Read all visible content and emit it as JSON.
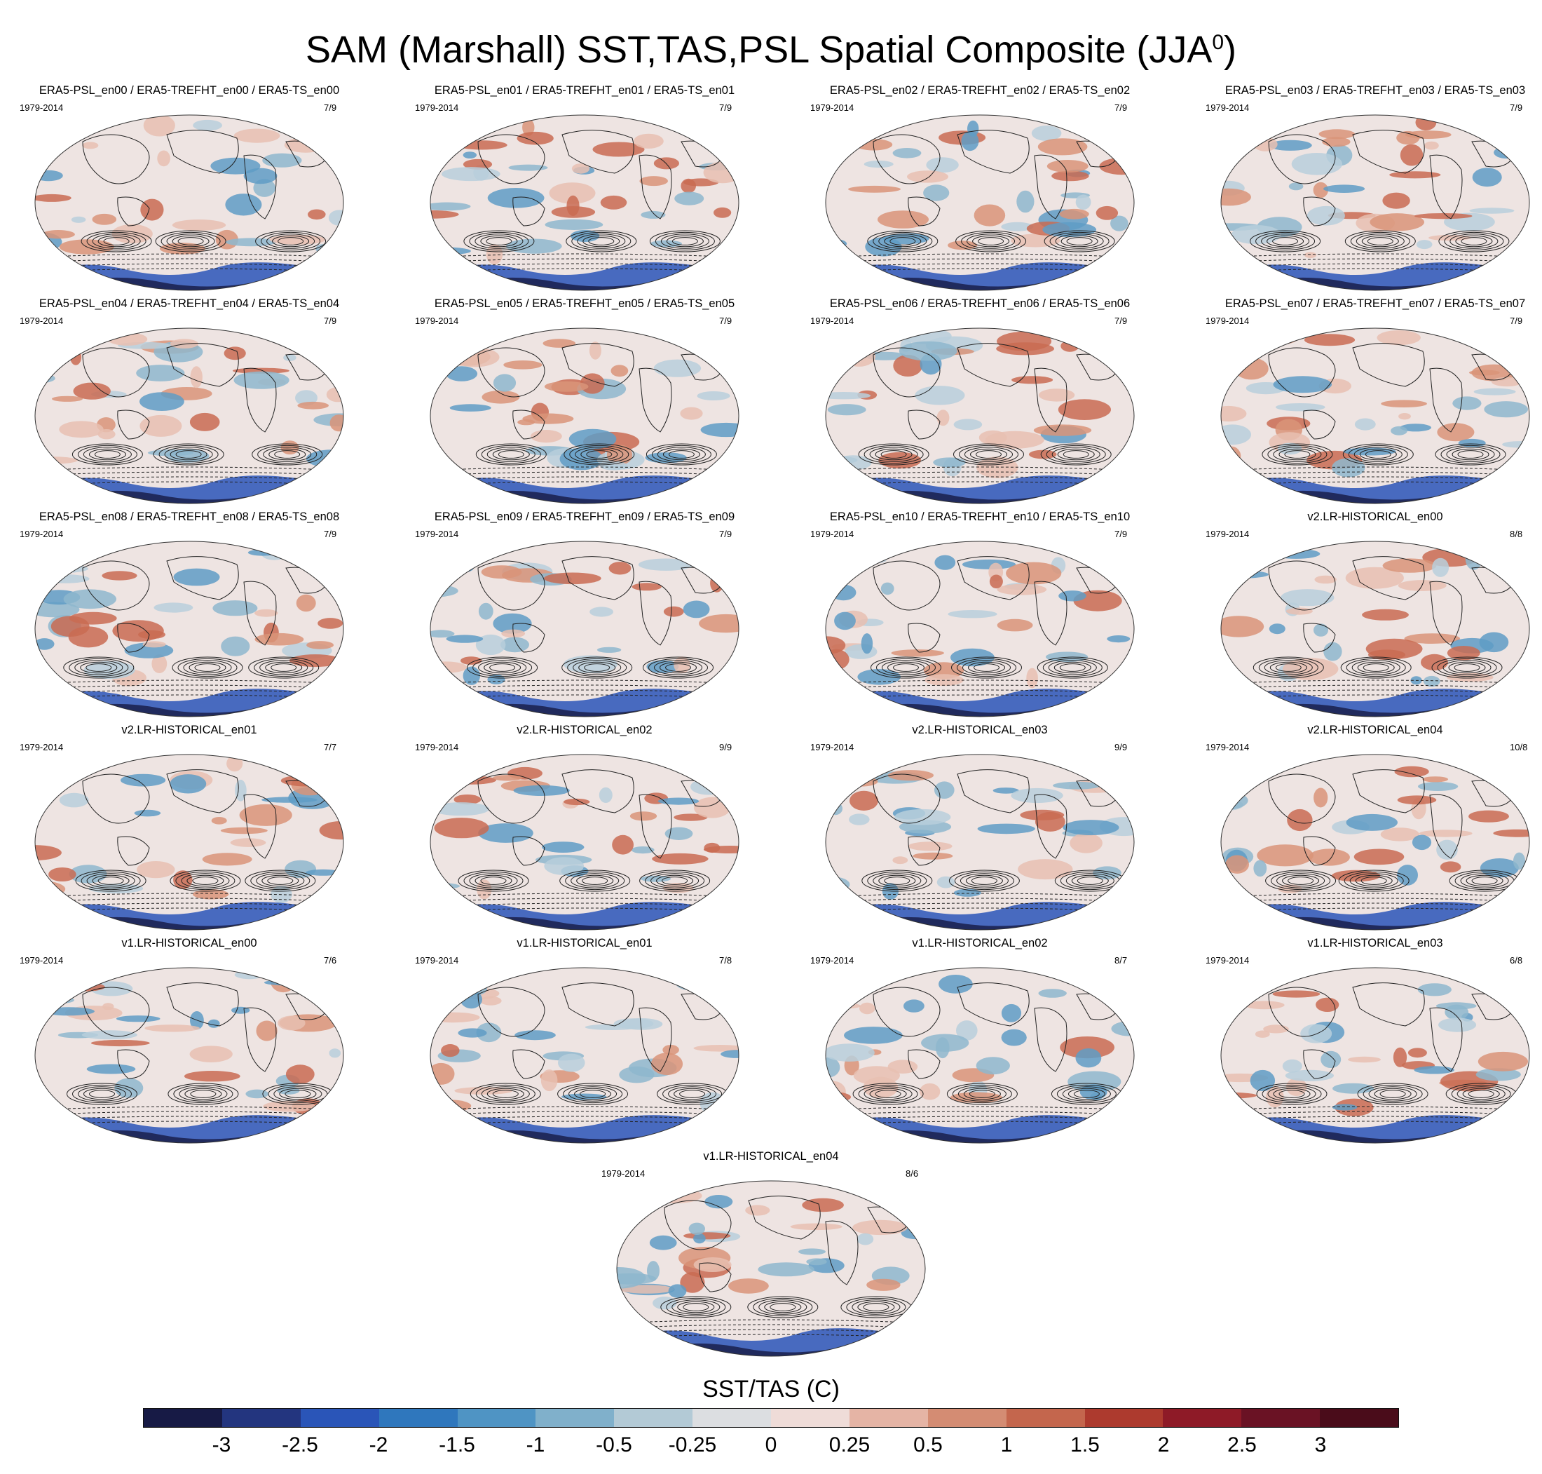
{
  "title": {
    "main": "SAM (Marshall) SST,TAS,PSL Spatial Composite (JJA",
    "sup": "0",
    "close": ")"
  },
  "panels": [
    {
      "title": "ERA5-PSL_en00 / ERA5-TREFHT_en00 / ERA5-TS_en00",
      "period": "1979-2014",
      "ratio": "7/9"
    },
    {
      "title": "ERA5-PSL_en01 / ERA5-TREFHT_en01 / ERA5-TS_en01",
      "period": "1979-2014",
      "ratio": "7/9"
    },
    {
      "title": "ERA5-PSL_en02 / ERA5-TREFHT_en02 / ERA5-TS_en02",
      "period": "1979-2014",
      "ratio": "7/9"
    },
    {
      "title": "ERA5-PSL_en03 / ERA5-TREFHT_en03 / ERA5-TS_en03",
      "period": "1979-2014",
      "ratio": "7/9"
    },
    {
      "title": "ERA5-PSL_en04 / ERA5-TREFHT_en04 / ERA5-TS_en04",
      "period": "1979-2014",
      "ratio": "7/9"
    },
    {
      "title": "ERA5-PSL_en05 / ERA5-TREFHT_en05 / ERA5-TS_en05",
      "period": "1979-2014",
      "ratio": "7/9"
    },
    {
      "title": "ERA5-PSL_en06 / ERA5-TREFHT_en06 / ERA5-TS_en06",
      "period": "1979-2014",
      "ratio": "7/9"
    },
    {
      "title": "ERA5-PSL_en07 / ERA5-TREFHT_en07 / ERA5-TS_en07",
      "period": "1979-2014",
      "ratio": "7/9"
    },
    {
      "title": "ERA5-PSL_en08 / ERA5-TREFHT_en08 / ERA5-TS_en08",
      "period": "1979-2014",
      "ratio": "7/9"
    },
    {
      "title": "ERA5-PSL_en09 / ERA5-TREFHT_en09 / ERA5-TS_en09",
      "period": "1979-2014",
      "ratio": "7/9"
    },
    {
      "title": "ERA5-PSL_en10 / ERA5-TREFHT_en10 / ERA5-TS_en10",
      "period": "1979-2014",
      "ratio": "7/9"
    },
    {
      "title": "v2.LR-HISTORICAL_en00",
      "period": "1979-2014",
      "ratio": "8/8"
    },
    {
      "title": "v2.LR-HISTORICAL_en01",
      "period": "1979-2014",
      "ratio": "7/7"
    },
    {
      "title": "v2.LR-HISTORICAL_en02",
      "period": "1979-2014",
      "ratio": "9/9"
    },
    {
      "title": "v2.LR-HISTORICAL_en03",
      "period": "1979-2014",
      "ratio": "9/9"
    },
    {
      "title": "v2.LR-HISTORICAL_en04",
      "period": "1979-2014",
      "ratio": "10/8"
    },
    {
      "title": "v1.LR-HISTORICAL_en00",
      "period": "1979-2014",
      "ratio": "7/6"
    },
    {
      "title": "v1.LR-HISTORICAL_en01",
      "period": "1979-2014",
      "ratio": "7/8"
    },
    {
      "title": "v1.LR-HISTORICAL_en02",
      "period": "1979-2014",
      "ratio": "8/7"
    },
    {
      "title": "v1.LR-HISTORICAL_en03",
      "period": "1979-2014",
      "ratio": "6/8"
    },
    {
      "title": "v1.LR-HISTORICAL_en04",
      "period": "1979-2014",
      "ratio": "8/6"
    }
  ],
  "colorbar": {
    "title": "SST/TAS (C)",
    "labels": [
      "-3",
      "-2.5",
      "-2",
      "-1.5",
      "-1",
      "-0.5",
      "-0.25",
      "0",
      "0.25",
      "0.5",
      "1",
      "1.5",
      "2",
      "2.5",
      "3"
    ],
    "colors": [
      "#171a45",
      "#23357f",
      "#2a55b8",
      "#2f77bd",
      "#4f94c4",
      "#80b0cb",
      "#b3cad6",
      "#dcdee1",
      "#efdcd8",
      "#e5b4a5",
      "#d48c73",
      "#c4664d",
      "#ad3a2e",
      "#8e1a27",
      "#6a1224",
      "#4a0c1a"
    ]
  }
}
